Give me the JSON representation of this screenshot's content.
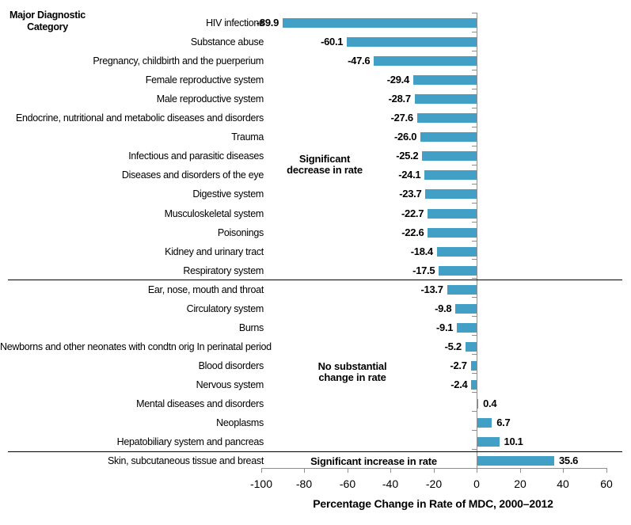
{
  "category_axis_header": {
    "line1": "Major Diagnostic",
    "line2": "Category"
  },
  "chart_data": {
    "type": "bar",
    "orientation": "horizontal",
    "xlabel": "Percentage Change in Rate of MDC, 2000–2012",
    "xlim": [
      -100,
      60
    ],
    "x_ticks": [
      -100,
      -80,
      -60,
      -40,
      -20,
      0,
      20,
      40,
      60
    ],
    "grid": false,
    "legend": false,
    "bar_color": "#429FC5",
    "axis_color": "#8E8E8E",
    "categories": [
      "HIV infections",
      "Substance abuse",
      "Pregnancy, childbirth and the puerperium",
      "Female reproductive system",
      "Male reproductive system",
      "Endocrine, nutritional and metabolic diseases and disorders",
      "Trauma",
      "Infectious and parasitic diseases",
      "Diseases and disorders of the eye",
      "Digestive system",
      "Musculoskeletal system",
      "Poisonings",
      "Kidney and urinary tract",
      "Respiratory system",
      "Ear, nose, mouth and throat",
      "Circulatory system",
      "Burns",
      "Newborns and other neonates with condtn orig In perinatal period",
      "Blood disorders",
      "Nervous system",
      "Mental diseases and disorders",
      "Neoplasms",
      "Hepatobiliary system and pancreas",
      "Skin, subcutaneous tissue and breast"
    ],
    "values": [
      -89.9,
      -60.1,
      -47.6,
      -29.4,
      -28.7,
      -27.6,
      -26.0,
      -25.2,
      -24.1,
      -23.7,
      -22.7,
      -22.6,
      -18.4,
      -17.5,
      -13.7,
      -9.8,
      -9.1,
      -5.2,
      -2.7,
      -2.4,
      0.4,
      6.7,
      10.1,
      35.6
    ],
    "group_dividers_after_rows": [
      13,
      22
    ],
    "annotations": {
      "decrease": {
        "line1": "Significant",
        "line2": "decrease in rate"
      },
      "no_change": {
        "line1": "No substantial",
        "line2": "change in rate"
      },
      "increase": {
        "label": "Significant increase in rate"
      }
    }
  }
}
